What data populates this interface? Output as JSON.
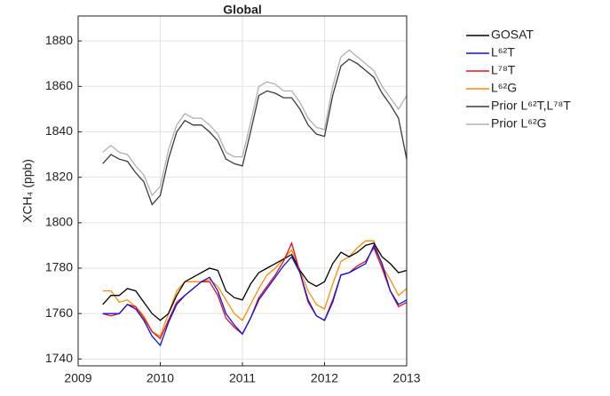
{
  "chart_data": {
    "type": "line",
    "title": "Global",
    "y_label": "XCH₄ (ppb)",
    "x": [
      2009.3,
      2009.4,
      2009.5,
      2009.6,
      2009.7,
      2009.8,
      2009.9,
      2010.0,
      2010.1,
      2010.2,
      2010.3,
      2010.4,
      2010.5,
      2010.6,
      2010.7,
      2010.8,
      2010.9,
      2011.0,
      2011.1,
      2011.2,
      2011.3,
      2011.4,
      2011.5,
      2011.6,
      2011.7,
      2011.8,
      2011.9,
      2012.0,
      2012.1,
      2012.2,
      2012.3,
      2012.4,
      2012.5,
      2012.6,
      2012.7,
      2012.8,
      2012.9,
      2013.0
    ],
    "xlim": [
      2009,
      2013
    ],
    "xticks": [
      2009,
      2010,
      2011,
      2012,
      2013
    ],
    "ylim": [
      1737,
      1891
    ],
    "yticks": [
      1740,
      1760,
      1780,
      1800,
      1820,
      1840,
      1860,
      1880
    ],
    "grid": true,
    "legend": "outside right",
    "series": [
      {
        "name": "GOSAT",
        "color": "#000000",
        "values": [
          1764,
          1768,
          1768,
          1771,
          1770,
          1765,
          1760,
          1757,
          1760,
          1768,
          1774,
          1776,
          1778,
          1780,
          1779,
          1770,
          1767,
          1766,
          1773,
          1778,
          1780,
          1782,
          1784,
          1786,
          1779,
          1774,
          1772,
          1774,
          1782,
          1787,
          1785,
          1787,
          1790,
          1791,
          1785,
          1782,
          1778,
          1779
        ]
      },
      {
        "name": "L⁶²T",
        "color": "#1010e0",
        "values": [
          1760,
          1760,
          1760,
          1764,
          1762,
          1757,
          1750,
          1746,
          1756,
          1764,
          1768,
          1771,
          1774,
          1776,
          1770,
          1760,
          1755,
          1751,
          1758,
          1766,
          1771,
          1776,
          1781,
          1785,
          1778,
          1766,
          1759,
          1757,
          1765,
          1777,
          1778,
          1780,
          1782,
          1790,
          1782,
          1770,
          1764,
          1766
        ]
      },
      {
        "name": "L⁷⁸T",
        "color": "#e01020",
        "values": [
          1760,
          1759,
          1760,
          1764,
          1763,
          1758,
          1752,
          1749,
          1757,
          1765,
          1768,
          1771,
          1774,
          1774,
          1768,
          1758,
          1754,
          1751,
          1758,
          1767,
          1772,
          1777,
          1783,
          1791,
          1778,
          1765,
          1759,
          1757,
          1766,
          1777,
          1778,
          1781,
          1783,
          1789,
          1780,
          1770,
          1763,
          1765
        ]
      },
      {
        "name": "L⁶²G",
        "color": "#ff8c00",
        "values": [
          1770,
          1770,
          1765,
          1766,
          1763,
          1759,
          1752,
          1750,
          1760,
          1770,
          1774,
          1774,
          1774,
          1775,
          1772,
          1766,
          1760,
          1757,
          1764,
          1771,
          1777,
          1780,
          1784,
          1788,
          1779,
          1770,
          1764,
          1762,
          1773,
          1783,
          1785,
          1789,
          1792,
          1792,
          1781,
          1775,
          1768,
          1771
        ]
      },
      {
        "name": "Prior L⁶²T,L⁷⁸T",
        "color": "#3a3a3a",
        "values": [
          1826,
          1830,
          1828,
          1827,
          1822,
          1818,
          1808,
          1812,
          1828,
          1840,
          1845,
          1843,
          1843,
          1840,
          1836,
          1828,
          1826,
          1825,
          1840,
          1856,
          1858,
          1857,
          1855,
          1855,
          1850,
          1843,
          1839,
          1838,
          1856,
          1869,
          1872,
          1870,
          1867,
          1864,
          1857,
          1852,
          1846,
          1828
        ]
      },
      {
        "name": "Prior L⁶²G",
        "color": "#b0b0b0",
        "values": [
          1831,
          1834,
          1831,
          1830,
          1825,
          1821,
          1812,
          1816,
          1832,
          1843,
          1848,
          1846,
          1846,
          1843,
          1839,
          1831,
          1829,
          1829,
          1844,
          1860,
          1862,
          1861,
          1858,
          1858,
          1853,
          1846,
          1842,
          1841,
          1860,
          1873,
          1876,
          1873,
          1870,
          1867,
          1860,
          1855,
          1850,
          1856
        ]
      }
    ]
  }
}
